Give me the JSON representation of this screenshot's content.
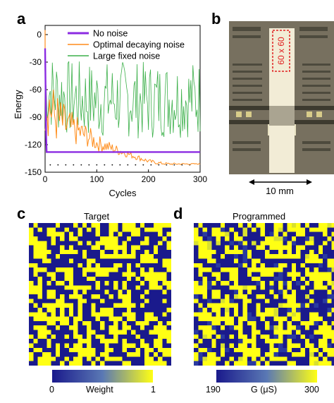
{
  "panels": {
    "a": "a",
    "b": "b",
    "c": "c",
    "d": "d"
  },
  "chart_data": [
    {
      "type": "line",
      "xlabel": "Cycles",
      "ylabel": "Energy",
      "xlim": [
        0,
        300
      ],
      "ylim": [
        -150,
        10
      ],
      "xticks": [
        "0",
        "100",
        "200",
        "300"
      ],
      "yticks": [
        "0",
        "-30",
        "-60",
        "-90",
        "-120",
        "-150"
      ],
      "legend_position": "top-right",
      "series": [
        {
          "name": "No noise",
          "color": "#8b2be2",
          "x": [
            0,
            1,
            2,
            3,
            300
          ],
          "y": [
            -15,
            -60,
            -110,
            -128,
            -128
          ]
        },
        {
          "name": "Optimal decaying noise",
          "color": "#ff8c1a",
          "x": [
            0,
            20,
            40,
            60,
            80,
            100,
            120,
            140,
            160,
            180,
            200,
            220,
            240,
            260,
            280,
            300
          ],
          "y": [
            -70,
            -90,
            -100,
            -105,
            -110,
            -118,
            -122,
            -126,
            -130,
            -134,
            -138,
            -140,
            -141,
            -141,
            -141,
            -141
          ]
        },
        {
          "name": "Large fixed noise",
          "color": "#3cb04a",
          "x": [
            0,
            50,
            100,
            150,
            200,
            250,
            300
          ],
          "y": [
            -60,
            -70,
            -72,
            -70,
            -72,
            -70,
            -70
          ]
        }
      ],
      "annotations": "dotted baseline near -142"
    },
    {
      "type": "heatmap",
      "title": "Target",
      "colorbar": {
        "label": "Weight",
        "min": "0",
        "max": "1"
      },
      "colors": {
        "low": "#1a1a8c",
        "high": "#ffff14"
      },
      "size": [
        32,
        32
      ]
    },
    {
      "type": "heatmap",
      "title": "Programmed",
      "colorbar": {
        "label": "G (μS)",
        "min": "190",
        "max": "300"
      },
      "colors": {
        "low": "#1a1a8c",
        "high": "#ffff14"
      },
      "size": [
        32,
        32
      ]
    }
  ],
  "chip": {
    "label": "60 x 60",
    "scale": "10 mm"
  }
}
